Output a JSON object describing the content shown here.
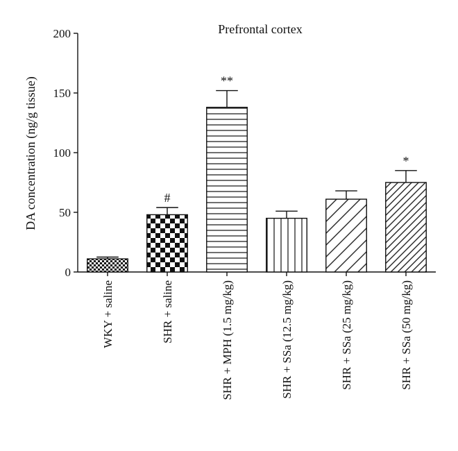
{
  "chart_data": {
    "type": "bar",
    "title": "Prefrontal cortex",
    "xlabel": "",
    "ylabel": "DA concentration (ng/g tissue)",
    "ylim": [
      0,
      200
    ],
    "yticks": [
      0,
      50,
      100,
      150,
      200
    ],
    "grid": false,
    "categories": [
      "WKY + saline",
      "SHR + saline",
      "SHR + MPH (1.5 mg/kg)",
      "SHR + SSa (12.5 mg/kg)",
      "SHR + SSa (25 mg/kg)",
      "SHR + SSa (50 mg/kg)"
    ],
    "values": [
      11,
      48,
      138,
      45,
      61,
      75
    ],
    "errors": [
      1.5,
      6,
      14,
      6,
      7,
      10
    ],
    "significance": [
      "",
      "#",
      "**",
      "",
      "",
      "*"
    ],
    "patterns": [
      "fine-checker",
      "checker",
      "horizontal-lines",
      "vertical-lines",
      "diagonal-wide",
      "diagonal-dense"
    ]
  }
}
